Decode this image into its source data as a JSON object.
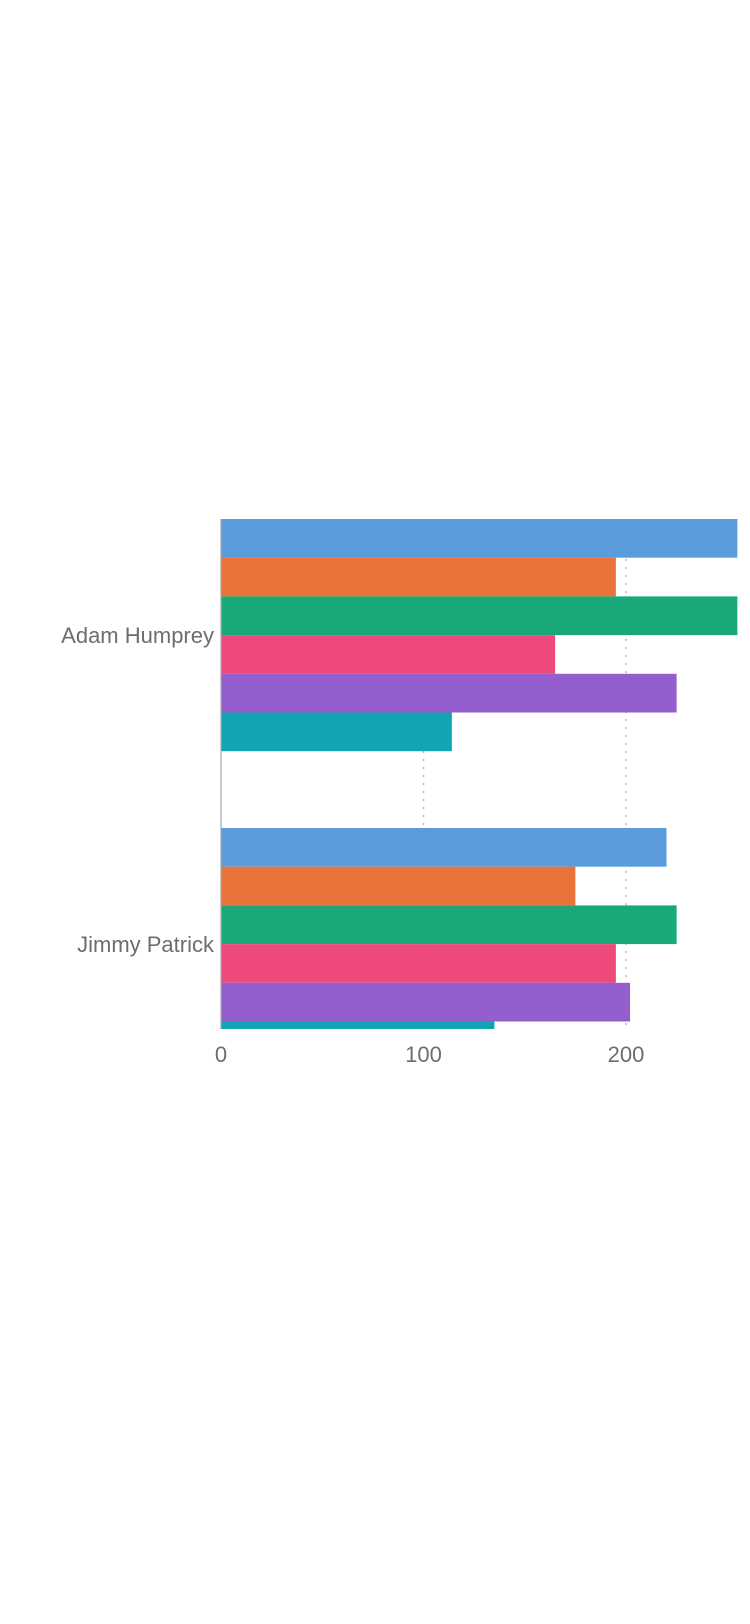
{
  "chart_data": {
    "type": "bar",
    "orientation": "horizontal",
    "categories": [
      "Adam Humprey",
      "Jimmy Patrick"
    ],
    "series": [
      {
        "values": [
          255,
          220
        ],
        "color": "#5a9bdb"
      },
      {
        "values": [
          195,
          175
        ],
        "color": "#e8743b"
      },
      {
        "values": [
          255,
          225
        ],
        "color": "#19a979"
      },
      {
        "values": [
          165,
          195
        ],
        "color": "#ed4a7b"
      },
      {
        "values": [
          225,
          202
        ],
        "color": "#945ecf"
      },
      {
        "values": [
          114,
          135
        ],
        "color": "#13a4b4"
      }
    ],
    "x_ticks": [
      "0",
      "100",
      "200"
    ],
    "xlim": [
      0,
      250
    ],
    "title": "",
    "xlabel": "",
    "ylabel": "",
    "grid": "vertical dotted",
    "legend": "none"
  }
}
